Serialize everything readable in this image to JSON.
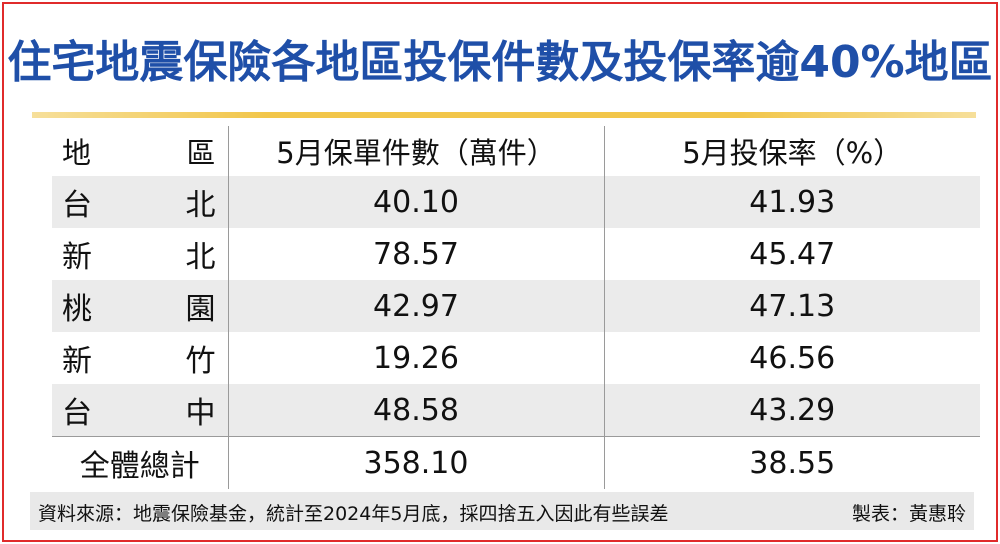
{
  "chart_data": {
    "type": "table",
    "title": "住宅地震保險各地區投保件數及投保率逾40%地區",
    "columns": [
      "地　區",
      "5月保單件數（萬件）",
      "5月投保率（%）"
    ],
    "rows": [
      {
        "region": [
          "台",
          "北"
        ],
        "policies": "40.10",
        "rate": "41.93"
      },
      {
        "region": [
          "新",
          "北"
        ],
        "policies": "78.57",
        "rate": "45.47"
      },
      {
        "region": [
          "桃",
          "園"
        ],
        "policies": "42.97",
        "rate": "47.13"
      },
      {
        "region": [
          "新",
          "竹"
        ],
        "policies": "19.26",
        "rate": "46.56"
      },
      {
        "region": [
          "台",
          "中"
        ],
        "policies": "48.58",
        "rate": "43.29"
      }
    ],
    "total": {
      "label": "全體總計",
      "policies": "358.10",
      "rate": "38.55"
    },
    "source": "資料來源：地震保險基金，統計至2024年5月底，採四捨五入因此有些誤差",
    "credit": "製表：黃惠聆"
  },
  "header_region": [
    "地",
    "區"
  ],
  "colors": {
    "title": "#1f4fa8",
    "border": "#e02b2b",
    "rule": "#f2c64a",
    "row_shade": "#ebebeb",
    "footer_bg": "#e9e9e9"
  }
}
